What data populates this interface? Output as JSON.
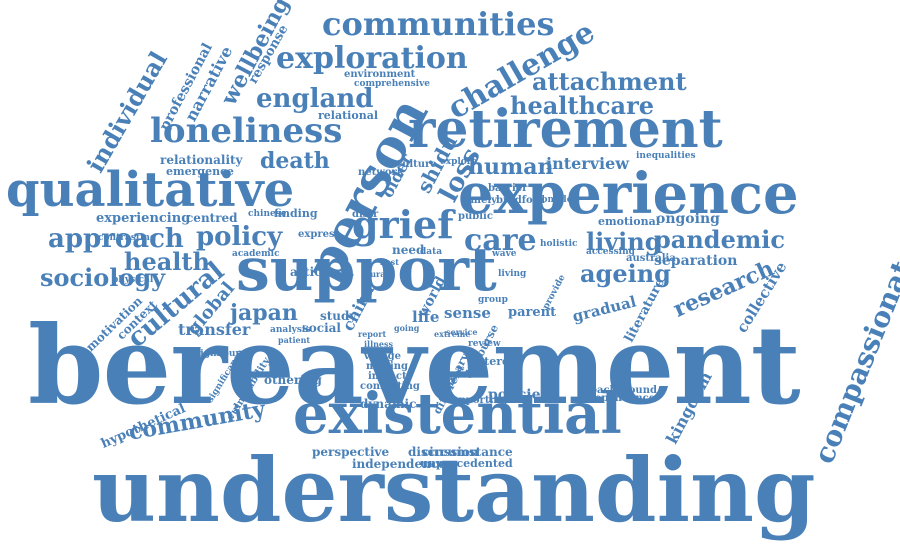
{
  "cloud": {
    "color": "#4a80b8",
    "words": [
      "bereavement",
      "understanding",
      "support",
      "experience",
      "existential",
      "retirement",
      "qualitative",
      "person",
      "loneliness",
      "compassionate",
      "communities",
      "exploration",
      "challenge",
      "attachment",
      "healthcare",
      "england",
      "grief",
      "care",
      "approach",
      "policy",
      "pandemic",
      "living",
      "ageing",
      "sociology",
      "health",
      "cultural",
      "research",
      "individual",
      "wellbeing",
      "narrative",
      "professional",
      "response",
      "death",
      "human",
      "interview",
      "community",
      "japan",
      "kingdom",
      "hypothetical",
      "global",
      "collective",
      "literature",
      "gradual",
      "transfer",
      "context",
      "motivation",
      "relationality",
      "emergence",
      "relational",
      "experiencing",
      "centred",
      "finding",
      "separation",
      "australia",
      "ongoing",
      "emotional",
      "policies",
      "perspective",
      "discussion",
      "circumstance",
      "independence",
      "unprecedented",
      "othering",
      "interest",
      "background",
      "dependence",
      "vulnerability",
      "significance",
      "china",
      "world",
      "sense",
      "life",
      "parent",
      "study",
      "social",
      "article",
      "need",
      "network",
      "culture",
      "timely",
      "bradford",
      "barrier",
      "public",
      "express",
      "academic",
      "physical",
      "contrasting",
      "neighbour",
      "analysis",
      "patient",
      "village",
      "making",
      "impact",
      "conflicting",
      "dynamic",
      "different",
      "primary",
      "discourse",
      "supporting",
      "review",
      "group",
      "environment",
      "comprehensive",
      "shidu",
      "loss",
      "older",
      "explore",
      "distr",
      "holistic",
      "inequalities",
      "accessing",
      "chinese",
      "complex",
      "wave",
      "provide",
      "living",
      "data",
      "report",
      "service",
      "going",
      "illness",
      "best",
      "rural",
      "extreme"
    ]
  }
}
